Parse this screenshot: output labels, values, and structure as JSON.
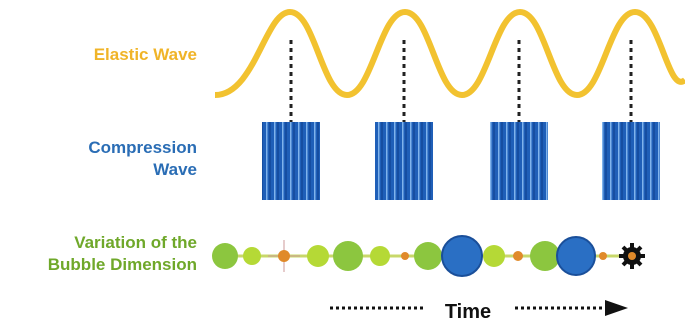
{
  "labels": {
    "elastic": "Elastic Wave",
    "compression": [
      "Compression",
      "Wave"
    ],
    "bubble": [
      "Variation of the",
      "Bubble Dimension"
    ],
    "time": "Time"
  }
}
